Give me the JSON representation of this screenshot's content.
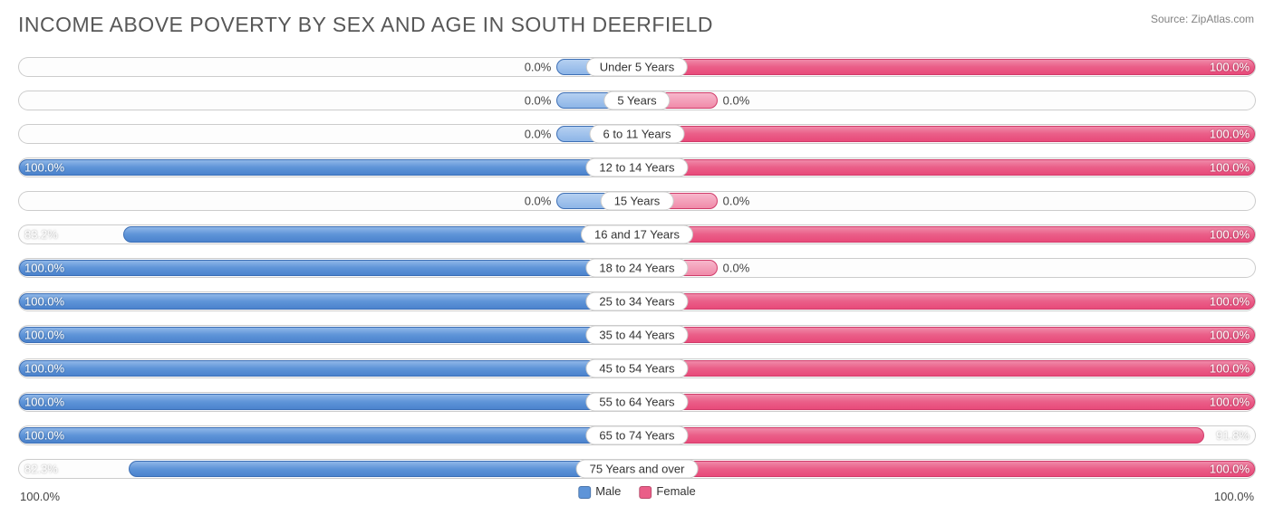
{
  "title": "INCOME ABOVE POVERTY BY SEX AND AGE IN SOUTH DEERFIELD",
  "source": "Source: ZipAtlas.com",
  "axis": {
    "left": "100.0%",
    "right": "100.0%"
  },
  "legend": {
    "male": {
      "label": "Male",
      "color": "#5e94d8"
    },
    "female": {
      "label": "Female",
      "color": "#ea5e88"
    }
  },
  "colors": {
    "male_bar": "#5e94d8",
    "female_bar": "#ea5e88",
    "track_border": "#cccccc",
    "text": "#444444",
    "title": "#575757"
  },
  "short_bar_pct": 13,
  "categories": [
    {
      "label": "Under 5 Years",
      "male": 0.0,
      "female": 100.0,
      "male_label": "0.0%",
      "female_label": "100.0%",
      "male_short": true,
      "female_short": false
    },
    {
      "label": "5 Years",
      "male": 0.0,
      "female": 0.0,
      "male_label": "0.0%",
      "female_label": "0.0%",
      "male_short": true,
      "female_short": true
    },
    {
      "label": "6 to 11 Years",
      "male": 0.0,
      "female": 100.0,
      "male_label": "0.0%",
      "female_label": "100.0%",
      "male_short": true,
      "female_short": false
    },
    {
      "label": "12 to 14 Years",
      "male": 100.0,
      "female": 100.0,
      "male_label": "100.0%",
      "female_label": "100.0%",
      "male_short": false,
      "female_short": false
    },
    {
      "label": "15 Years",
      "male": 0.0,
      "female": 0.0,
      "male_label": "0.0%",
      "female_label": "0.0%",
      "male_short": true,
      "female_short": true
    },
    {
      "label": "16 and 17 Years",
      "male": 83.2,
      "female": 100.0,
      "male_label": "83.2%",
      "female_label": "100.0%",
      "male_short": false,
      "female_short": false
    },
    {
      "label": "18 to 24 Years",
      "male": 100.0,
      "female": 0.0,
      "male_label": "100.0%",
      "female_label": "0.0%",
      "male_short": false,
      "female_short": true
    },
    {
      "label": "25 to 34 Years",
      "male": 100.0,
      "female": 100.0,
      "male_label": "100.0%",
      "female_label": "100.0%",
      "male_short": false,
      "female_short": false
    },
    {
      "label": "35 to 44 Years",
      "male": 100.0,
      "female": 100.0,
      "male_label": "100.0%",
      "female_label": "100.0%",
      "male_short": false,
      "female_short": false
    },
    {
      "label": "45 to 54 Years",
      "male": 100.0,
      "female": 100.0,
      "male_label": "100.0%",
      "female_label": "100.0%",
      "male_short": false,
      "female_short": false
    },
    {
      "label": "55 to 64 Years",
      "male": 100.0,
      "female": 100.0,
      "male_label": "100.0%",
      "female_label": "100.0%",
      "male_short": false,
      "female_short": false
    },
    {
      "label": "65 to 74 Years",
      "male": 100.0,
      "female": 91.8,
      "male_label": "100.0%",
      "female_label": "91.8%",
      "male_short": false,
      "female_short": false
    },
    {
      "label": "75 Years and over",
      "male": 82.3,
      "female": 100.0,
      "male_label": "82.3%",
      "female_label": "100.0%",
      "male_short": false,
      "female_short": false
    }
  ]
}
